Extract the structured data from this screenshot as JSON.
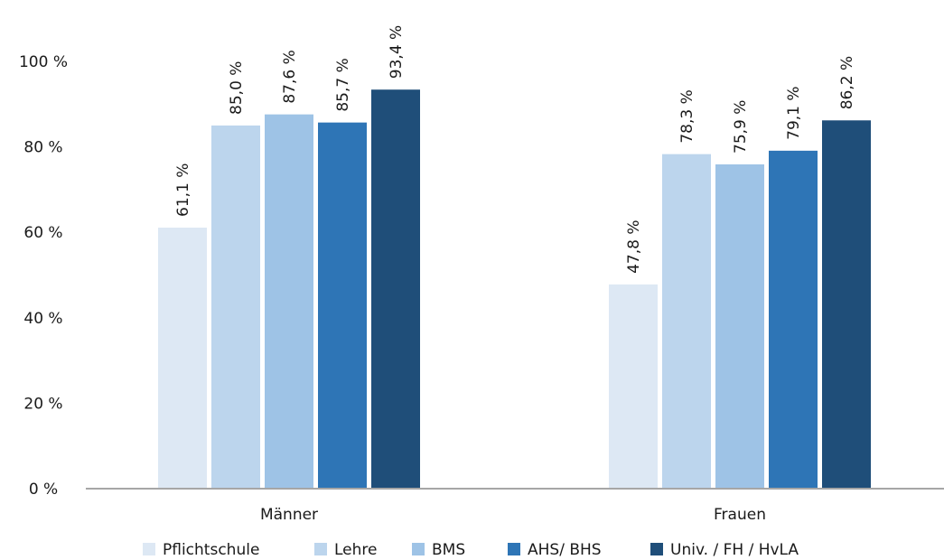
{
  "chart_data": {
    "type": "bar",
    "categories": [
      "Männer",
      "Frauen"
    ],
    "series": [
      {
        "name": "Pflichtschule",
        "values": [
          61.1,
          47.8
        ],
        "labels": [
          "61,1 %",
          "47,8 %"
        ],
        "color": "#dde8f4"
      },
      {
        "name": "Lehre",
        "values": [
          85.0,
          78.3
        ],
        "labels": [
          "85,0 %",
          "78,3 %"
        ],
        "color": "#bcd5ed"
      },
      {
        "name": "BMS",
        "values": [
          87.6,
          75.9
        ],
        "labels": [
          "87,6 %",
          "75,9 %"
        ],
        "color": "#9ec3e6"
      },
      {
        "name": "AHS/ BHS",
        "values": [
          85.7,
          79.1
        ],
        "labels": [
          "85,7 %",
          "79,1 %"
        ],
        "color": "#2e75b6"
      },
      {
        "name": "Univ. / FH / HvLA",
        "values": [
          93.4,
          86.2
        ],
        "labels": [
          "93,4 %",
          "86,2 %"
        ],
        "color": "#1f4e79"
      }
    ],
    "y_ticks": [
      "0 %",
      "20 %",
      "40 %",
      "60 %",
      "80 %",
      "100 %"
    ],
    "ylim": [
      0,
      100
    ],
    "grid": false,
    "legend_position": "bottom"
  }
}
